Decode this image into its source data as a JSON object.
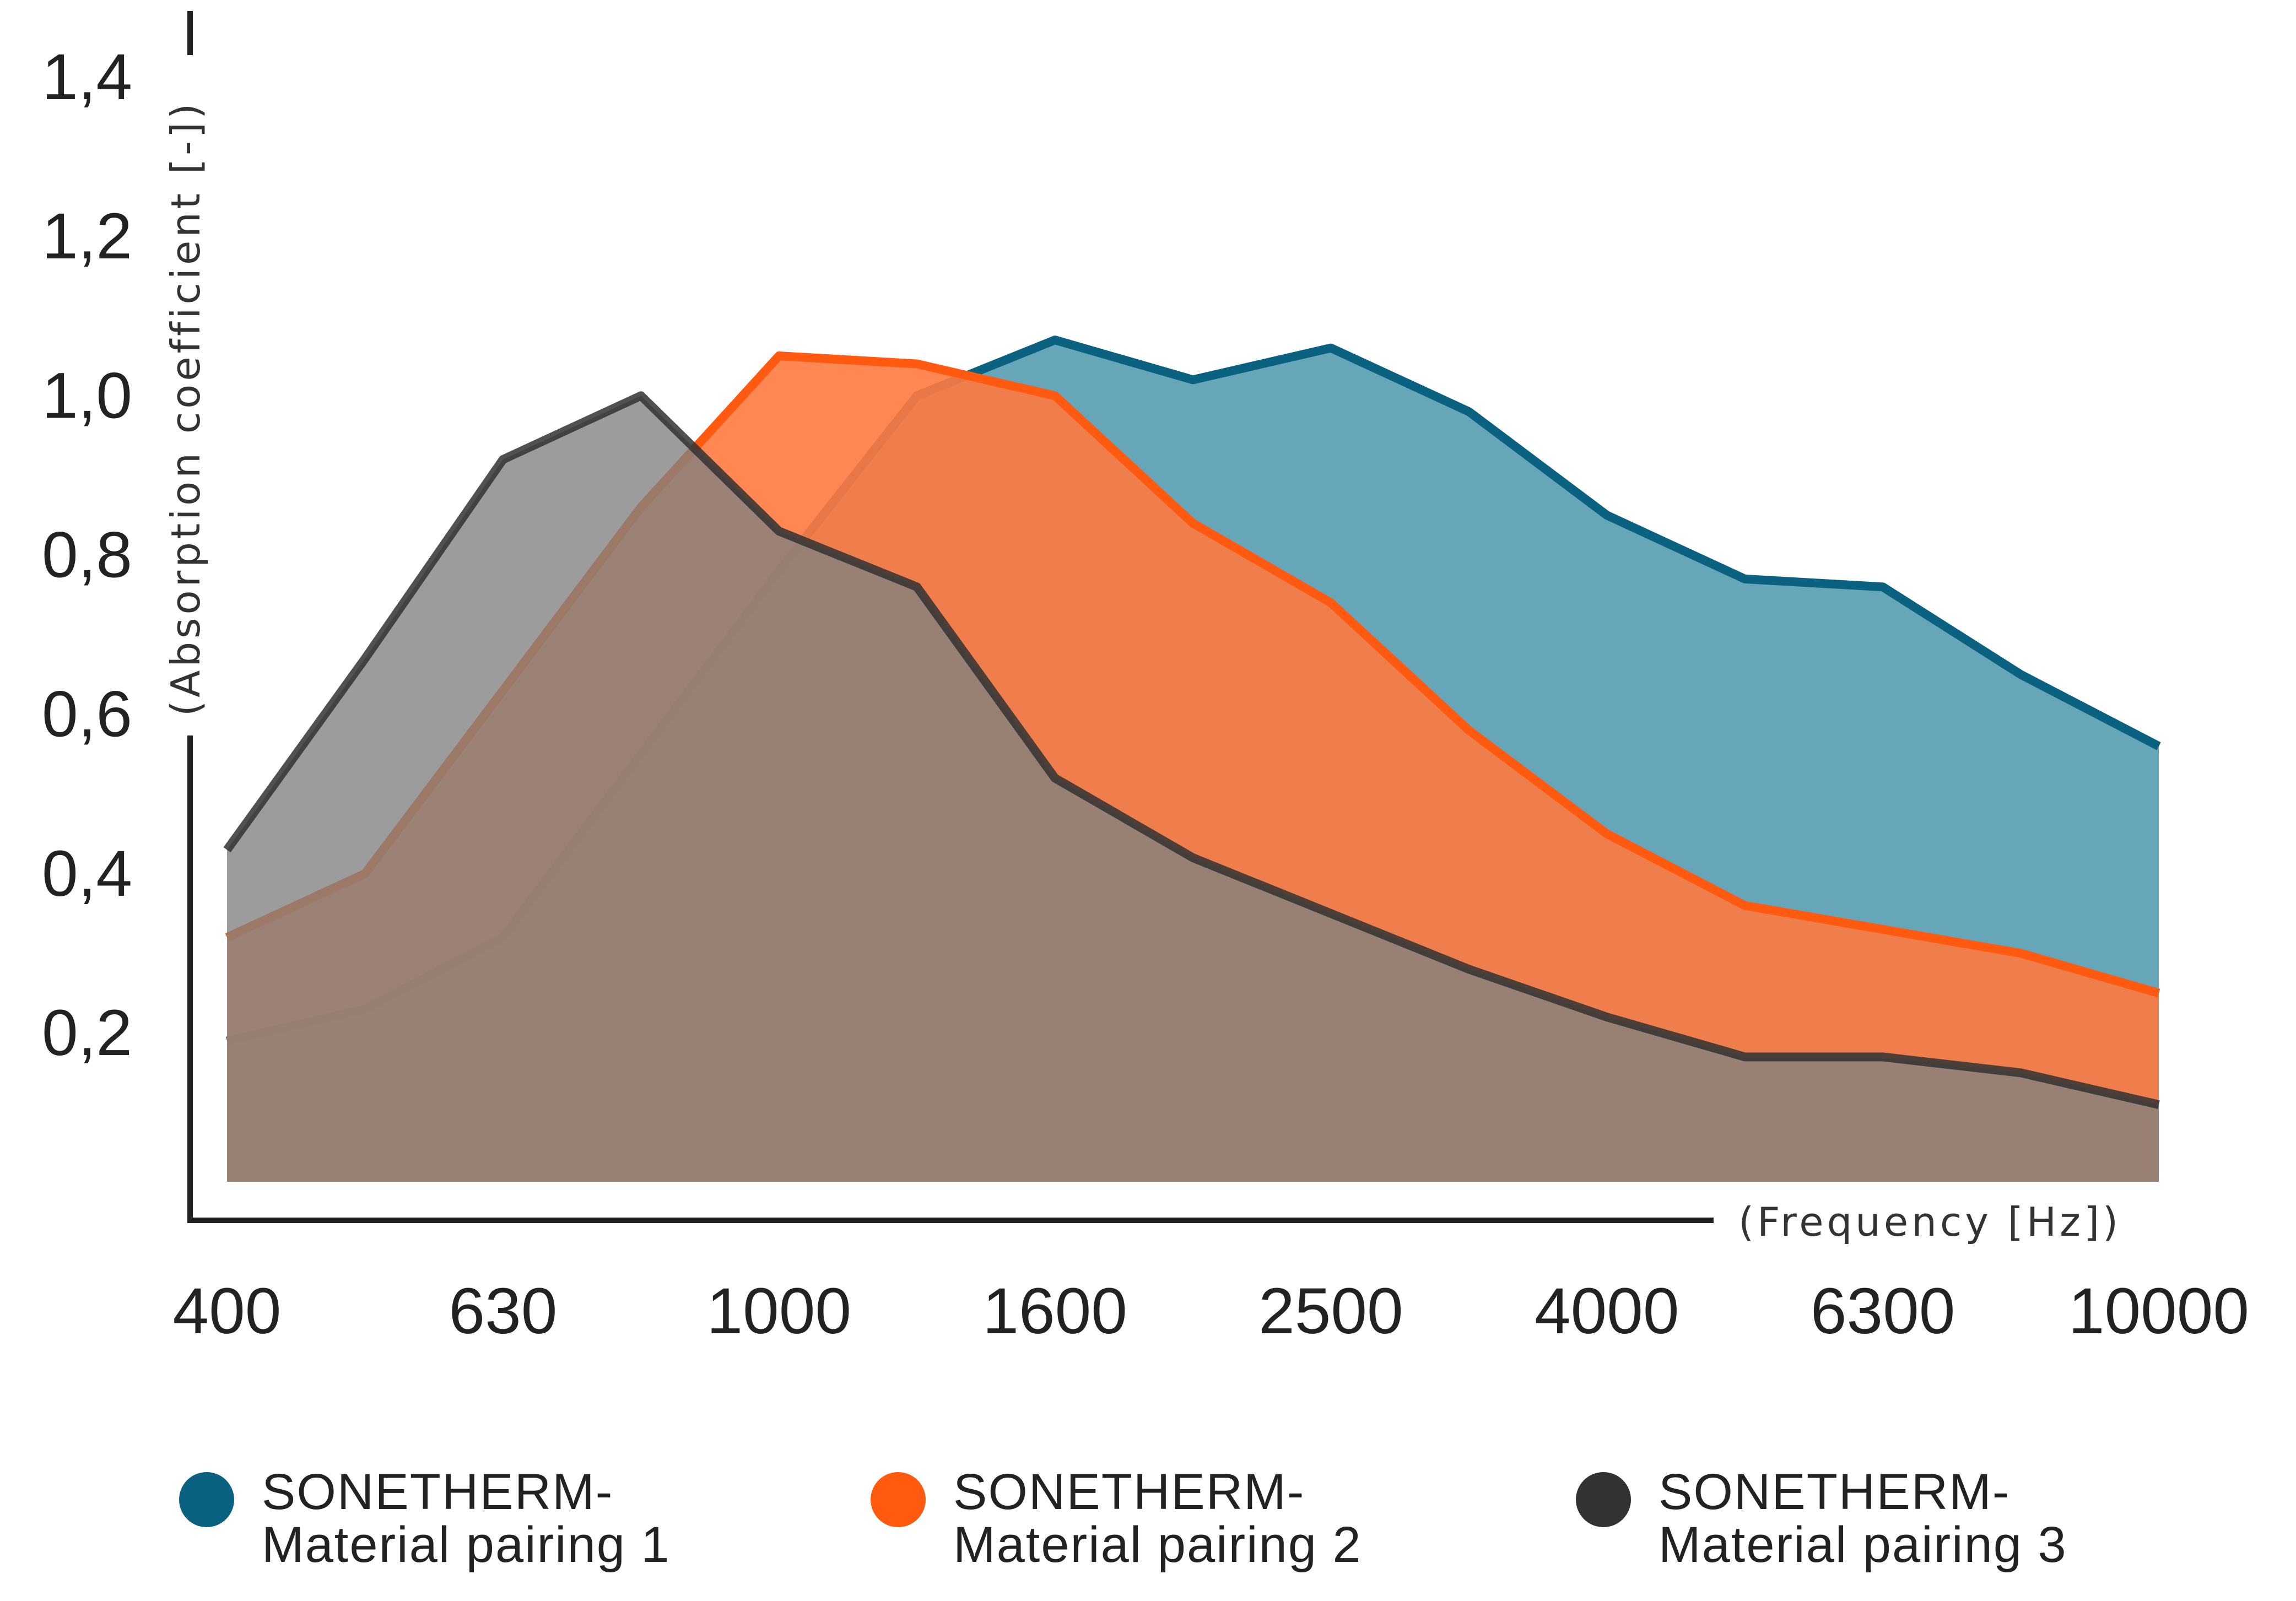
{
  "chart_data": {
    "type": "area",
    "xlabel": "(Frequency [Hz])",
    "ylabel": "(Absorption coefficient [-])",
    "x_tick_labels": [
      "400",
      "630",
      "1000",
      "1600",
      "2500",
      "4000",
      "6300",
      "10000"
    ],
    "x": [
      "400",
      "500",
      "630",
      "800",
      "1000",
      "1250",
      "1600",
      "2000",
      "2500",
      "3150",
      "4000",
      "5000",
      "6300",
      "8000",
      "10000"
    ],
    "y_tick_labels": [
      "0,2",
      "0,4",
      "0,6",
      "0,8",
      "1,0",
      "1,2",
      "1,4"
    ],
    "y_ticks": [
      0.2,
      0.4,
      0.6,
      0.8,
      1.0,
      1.2,
      1.4
    ],
    "ylim": [
      0,
      1.45
    ],
    "grid": false,
    "legend_position": "bottom",
    "series": [
      {
        "name": "SONETHERM-Material pairing 1",
        "label_lines": [
          "SONETHERM-",
          "Material pairing 1"
        ],
        "color": "#0a6180",
        "fill": "#67a5b8",
        "values": [
          0.19,
          0.23,
          0.32,
          0.55,
          0.78,
          1.0,
          1.07,
          1.02,
          1.06,
          0.98,
          0.85,
          0.77,
          0.76,
          0.65,
          0.56
        ]
      },
      {
        "name": "SONETHERM-Material pairing 2",
        "label_lines": [
          "SONETHERM-",
          "Material pairing 2"
        ],
        "color": "#ff5a10",
        "fill": "#ff7a40",
        "values": [
          0.32,
          0.4,
          0.63,
          0.86,
          1.05,
          1.04,
          1.0,
          0.84,
          0.74,
          0.58,
          0.45,
          0.36,
          0.33,
          0.3,
          0.25
        ]
      },
      {
        "name": "SONETHERM-Material pairing 3",
        "label_lines": [
          "SONETHERM-",
          "Material pairing 3"
        ],
        "color": "#333333",
        "fill": "#808080",
        "values": [
          0.43,
          0.67,
          0.92,
          1.0,
          0.83,
          0.76,
          0.52,
          0.42,
          0.35,
          0.28,
          0.22,
          0.17,
          0.17,
          0.15,
          0.11
        ]
      }
    ]
  }
}
